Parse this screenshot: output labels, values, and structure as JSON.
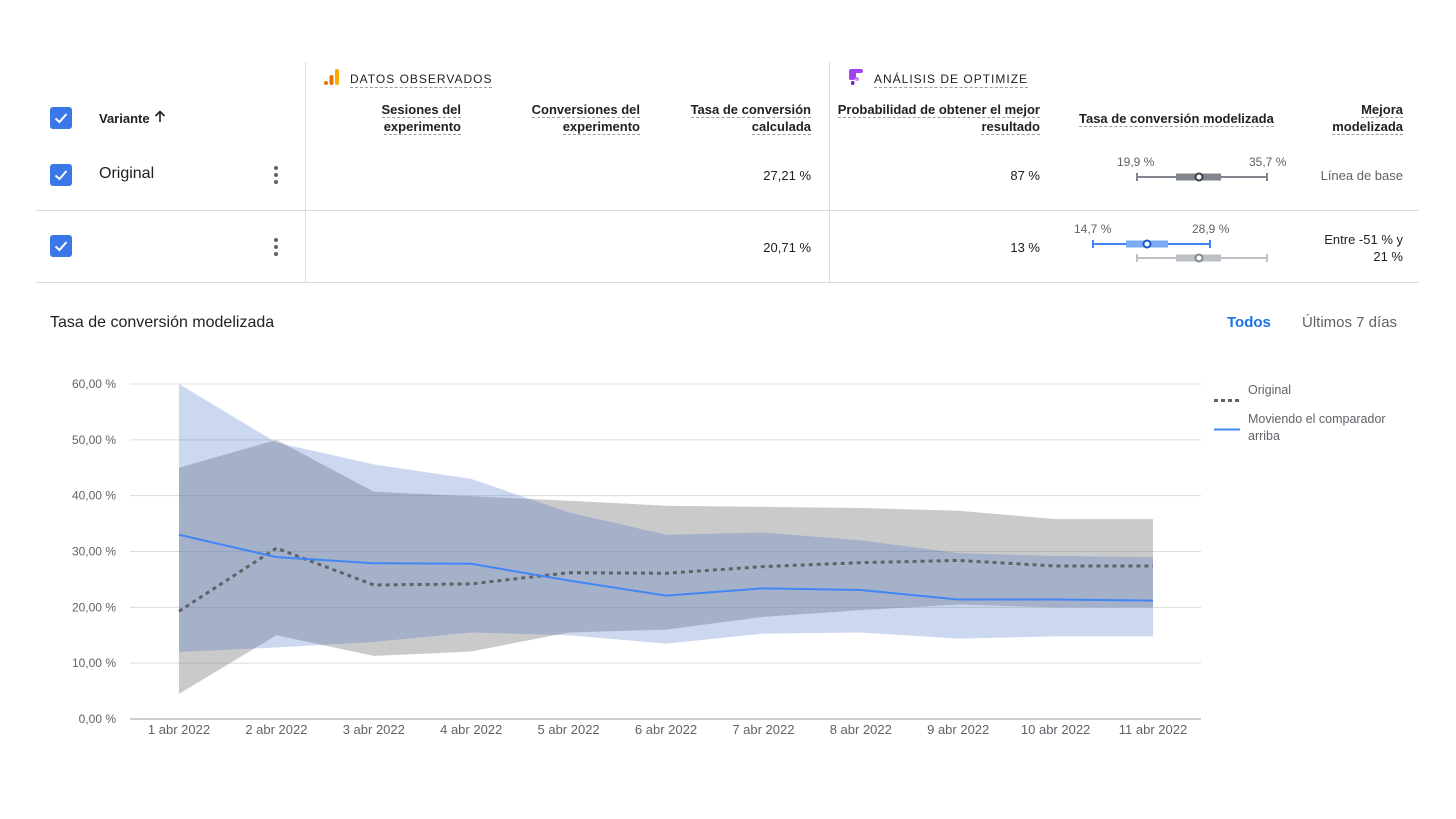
{
  "table": {
    "group_observed": "DATOS OBSERVADOS",
    "group_optimize": "ANÁLISIS DE OPTIMIZE",
    "col_variant": "Variante",
    "col_sessions_1": "Sesiones del",
    "col_sessions_2": "experimento",
    "col_conversions_1": "Conversiones del",
    "col_conversions_2": "experimento",
    "col_rate_1": "Tasa de conversión",
    "col_rate_2": "calculada",
    "col_prob_1": "Probabilidad de obtener el mejor",
    "col_prob_2": "resultado",
    "col_modeled_rate": "Tasa de conversión modelizada",
    "col_improvement_1": "Mejora",
    "col_improvement_2": "modelizada",
    "rows": [
      {
        "name": "Original",
        "sessions": "",
        "conversions": "",
        "rate": "27,21 %",
        "probability": "87 %",
        "range_low": "19,9 %",
        "range_high": "35,7 %",
        "improvement": "Línea de base"
      },
      {
        "name": "",
        "sessions": "",
        "conversions": "",
        "rate": "20,71 %",
        "probability": "13 %",
        "range_low": "14,7 %",
        "range_high": "28,9 %",
        "improvement_1": "Entre -51 % y",
        "improvement_2": "21 %"
      }
    ]
  },
  "chart_section": {
    "title": "Tasa de conversión modelizada",
    "tab_all": "Todos",
    "tab_7days": "Últimos 7 días",
    "colors": {
      "accent": "#1a73e8",
      "original": "#5f6368",
      "variant": "#4285f4"
    }
  },
  "chart_data": {
    "type": "line",
    "x": [
      "1 abr 2022",
      "2 abr 2022",
      "3 abr 2022",
      "4 abr 2022",
      "5 abr 2022",
      "6 abr 2022",
      "7 abr 2022",
      "8 abr 2022",
      "9 abr 2022",
      "10 abr 2022",
      "11 abr 2022"
    ],
    "ylim": [
      0,
      60
    ],
    "y_ticks": [
      "0,00 %",
      "10,00 %",
      "20,00 %",
      "30,00 %",
      "40,00 %",
      "50,00 %",
      "60,00 %"
    ],
    "y_tick_values": [
      0,
      10,
      20,
      30,
      40,
      50,
      60
    ],
    "grid": true,
    "legend_position": "right",
    "series": [
      {
        "name": "Original",
        "style": "dotted",
        "values": [
          19.3,
          30.6,
          24.0,
          24.2,
          26.2,
          26.1,
          27.3,
          28.0,
          28.4,
          27.4,
          27.4
        ],
        "lower": [
          4.5,
          15.0,
          11.3,
          12.1,
          15.5,
          16.0,
          18.3,
          19.5,
          20.5,
          20.0,
          20.0
        ],
        "upper": [
          45.0,
          50.0,
          40.7,
          39.9,
          39.1,
          38.2,
          38.0,
          37.8,
          37.3,
          35.8,
          35.8
        ]
      },
      {
        "name": "Moviendo el comparador arriba",
        "style": "solid",
        "values": [
          33.0,
          29.0,
          27.9,
          27.8,
          24.8,
          22.1,
          23.4,
          23.1,
          21.4,
          21.4,
          21.2
        ],
        "lower": [
          12.0,
          12.8,
          13.8,
          15.5,
          15.0,
          13.5,
          15.3,
          15.5,
          14.4,
          14.8,
          14.8
        ],
        "upper": [
          60.0,
          49.5,
          45.6,
          43.0,
          37.0,
          33.0,
          33.4,
          32.0,
          29.7,
          29.2,
          29.0
        ]
      }
    ],
    "legend": [
      "Original",
      "Moviendo el comparador arriba"
    ],
    "legend_line1": "Moviendo el comparador",
    "legend_line2": "arriba"
  }
}
